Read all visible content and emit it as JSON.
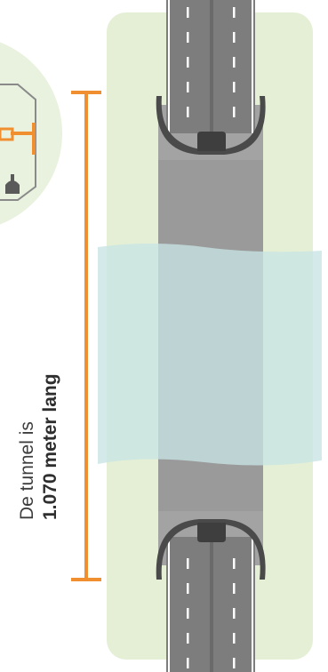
{
  "caption": {
    "line1": "De tunnel is",
    "line2": "1.070 meter lang"
  },
  "colors": {
    "accent": "#EF8F2F",
    "land_green": "#E4EFD6",
    "tunnel_gray": "#9A9A9A",
    "road_gray": "#7D7D7D",
    "portal_dark": "#4A4A4A",
    "water_blue": "#CDE6E6",
    "inset_circle": "#E9F2DE"
  }
}
